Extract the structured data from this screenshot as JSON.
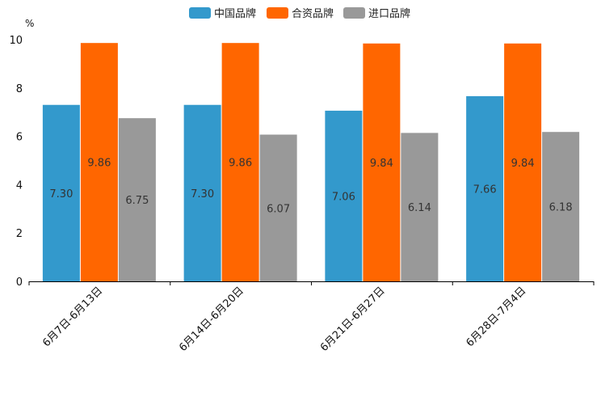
{
  "chart_data": {
    "type": "bar",
    "title": "",
    "xlabel": "",
    "ylabel": "",
    "unit": "%",
    "ylim": [
      0,
      10
    ],
    "yticks": [
      0,
      2,
      4,
      6,
      8,
      10
    ],
    "categories": [
      "6月7日-6月13日",
      "6月14日-6月20日",
      "6月21日-6月27日",
      "6月28日-7月4日"
    ],
    "series": [
      {
        "name": "中国品牌",
        "color": "#3399cc",
        "values": [
          7.3,
          7.3,
          7.06,
          7.66
        ],
        "labels": [
          "7.30",
          "7.30",
          "7.06",
          "7.66"
        ]
      },
      {
        "name": "合资品牌",
        "color": "#ff6600",
        "values": [
          9.86,
          9.86,
          9.84,
          9.84
        ],
        "labels": [
          "9.86",
          "9.86",
          "9.84",
          "9.84"
        ]
      },
      {
        "name": "进口品牌",
        "color": "#999999",
        "values": [
          6.75,
          6.07,
          6.14,
          6.18
        ],
        "labels": [
          "6.75",
          "6.07",
          "6.14",
          "6.18"
        ]
      }
    ],
    "legend_position": "top-center",
    "grid": false
  }
}
